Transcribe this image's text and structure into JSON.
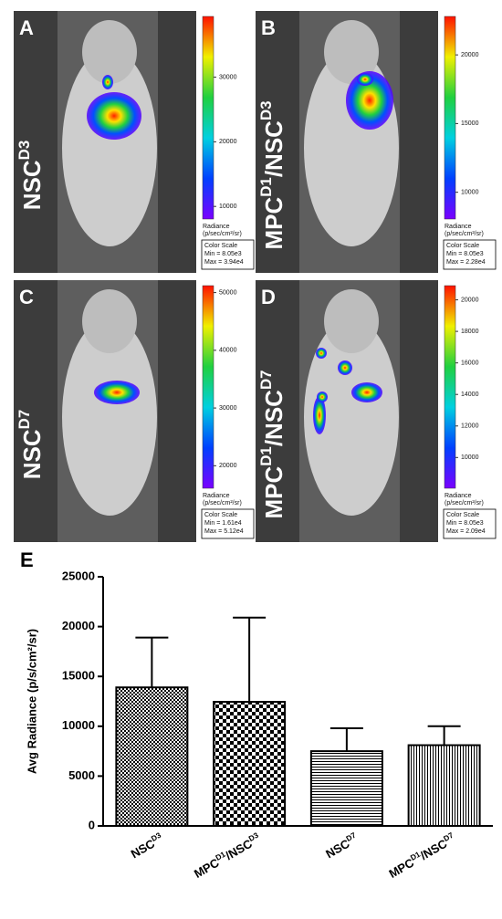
{
  "panels": [
    {
      "letter": "A",
      "label": [
        "NSC",
        "D3"
      ],
      "colorbar": {
        "ticks": [
          10000,
          20000,
          30000
        ],
        "min": {
          "value": 8050,
          "label": "Min = 8.05e3"
        },
        "max": {
          "value": 39400,
          "label": "Max = 3.94e4"
        }
      }
    },
    {
      "letter": "B",
      "label": [
        "MPC",
        "D1",
        "/NSC",
        "D3"
      ],
      "colorbar": {
        "ticks": [
          10000,
          15000,
          20000
        ],
        "min": {
          "value": 8050,
          "label": "Min = 8.05e3"
        },
        "max": {
          "value": 22800,
          "label": "Max = 2.28e4"
        }
      }
    },
    {
      "letter": "C",
      "label": [
        "NSC",
        "D7"
      ],
      "colorbar": {
        "ticks": [
          20000,
          30000,
          40000,
          50000
        ],
        "min": {
          "value": 16100,
          "label": "Min = 1.61e4"
        },
        "max": {
          "value": 51200,
          "label": "Max = 5.12e4"
        }
      }
    },
    {
      "letter": "D",
      "label": [
        "MPC",
        "D1",
        "/NSC",
        "D7"
      ],
      "colorbar": {
        "ticks": [
          10000,
          12000,
          14000,
          16000,
          18000,
          20000
        ],
        "min": {
          "value": 8050,
          "label": "Min = 8.05e3"
        },
        "max": {
          "value": 20900,
          "label": "Max = 2.09e4"
        }
      }
    }
  ],
  "radiance_label": "Radiance",
  "radiance_unit": "(p/sec/cm²/sr)",
  "color_scale_label": "Color Scale",
  "chart_data": {
    "type": "bar",
    "panel_letter": "E",
    "y_label": "Avg Radiance (p/s/cm²/sr)",
    "categories": [
      [
        "NSC",
        "D3"
      ],
      [
        "MPC",
        "D1",
        "/NSC",
        "D3"
      ],
      [
        "NSC",
        "D7"
      ],
      [
        "MPC",
        "D1",
        "/NSC",
        "D7"
      ]
    ],
    "values": [
      13900,
      12450,
      7500,
      8100
    ],
    "errors": [
      5000,
      8450,
      2300,
      1900
    ],
    "ylim": [
      0,
      25000
    ],
    "yticks": [
      0,
      5000,
      10000,
      15000,
      20000,
      25000
    ]
  }
}
